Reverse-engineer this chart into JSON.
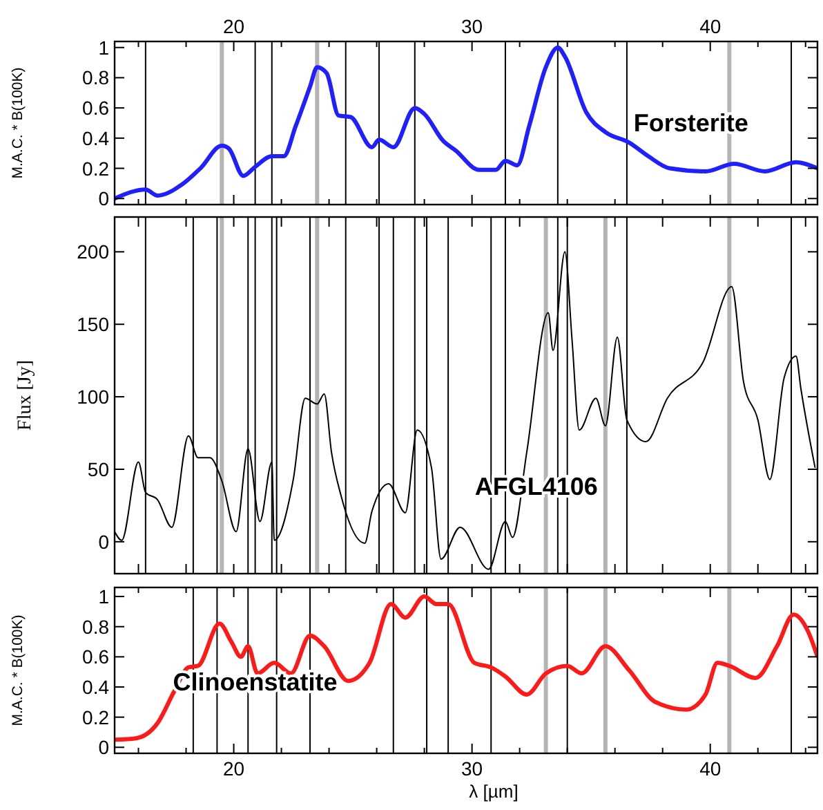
{
  "chart_data": [
    {
      "type": "line",
      "ylabel": "M.A.C. * B(100K)",
      "xlim": [
        15,
        44.5
      ],
      "ylim": [
        -0.04,
        1.04
      ],
      "xticks": [
        {
          "value": 16,
          "label": null
        },
        {
          "value": 18,
          "label": null
        },
        20,
        {
          "value": 22,
          "label": null
        },
        {
          "value": 24,
          "label": null
        },
        {
          "value": 26,
          "label": null
        },
        {
          "value": 28,
          "label": null
        },
        30,
        {
          "value": 32,
          "label": null
        },
        {
          "value": 34,
          "label": null
        },
        {
          "value": 36,
          "label": null
        },
        {
          "value": 38,
          "label": null
        },
        40,
        {
          "value": 42,
          "label": null
        },
        {
          "value": 44,
          "label": null
        }
      ],
      "yticks": [
        0,
        0.2,
        0.4,
        0.6,
        0.8,
        1
      ],
      "legend": false,
      "series": [
        {
          "name": "Forsterite",
          "color": "#1f1fff",
          "x": [
            15,
            16.3,
            16.8,
            17.8,
            18.6,
            19.5,
            19.8,
            20.4,
            20.9,
            21.6,
            22.1,
            22.6,
            23.2,
            23.5,
            23.9,
            24.4,
            24.9,
            25.8,
            26.1,
            26.7,
            27.6,
            28,
            28.8,
            29.3,
            30.3,
            31,
            31.4,
            31.9,
            32.4,
            33.1,
            33.6,
            33.9,
            34.8,
            35.6,
            36.6,
            37.4,
            38.3,
            39.8,
            41,
            42.3,
            43.6,
            44.5
          ],
          "values": [
            0,
            0.06,
            0.02,
            0.09,
            0.2,
            0.35,
            0.33,
            0.15,
            0.21,
            0.28,
            0.28,
            0.48,
            0.74,
            0.87,
            0.83,
            0.55,
            0.54,
            0.34,
            0.39,
            0.34,
            0.6,
            0.56,
            0.38,
            0.32,
            0.19,
            0.19,
            0.25,
            0.22,
            0.48,
            0.87,
            1,
            0.94,
            0.57,
            0.44,
            0.37,
            0.28,
            0.2,
            0.18,
            0.23,
            0.18,
            0.24,
            0.2
          ]
        }
      ],
      "ref_lines": [
        {
          "axis": "x",
          "value": 16.3,
          "color": "#000000"
        },
        {
          "axis": "x",
          "value": 19.5,
          "color": "#b4b4b4"
        },
        {
          "axis": "x",
          "value": 20.9,
          "color": "#000000"
        },
        {
          "axis": "x",
          "value": 21.6,
          "color": "#000000"
        },
        {
          "axis": "x",
          "value": 23.5,
          "color": "#b4b4b4"
        },
        {
          "axis": "x",
          "value": 24.7,
          "color": "#000000"
        },
        {
          "axis": "x",
          "value": 26.1,
          "color": "#000000"
        },
        {
          "axis": "x",
          "value": 27.6,
          "color": "#000000"
        },
        {
          "axis": "x",
          "value": 31.4,
          "color": "#000000"
        },
        {
          "axis": "x",
          "value": 33.6,
          "color": "#000000"
        },
        {
          "axis": "x",
          "value": 36.5,
          "color": "#000000"
        },
        {
          "axis": "x",
          "value": 40.8,
          "color": "#b4b4b4"
        },
        {
          "axis": "x",
          "value": 43.4,
          "color": "#000000"
        }
      ]
    },
    {
      "type": "line",
      "ylabel": "Flux [Jy]",
      "xlim": [
        15,
        44.5
      ],
      "ylim": [
        -22,
        224
      ],
      "tick_labels": "y",
      "xticks": [
        16,
        18,
        20,
        22,
        24,
        26,
        28,
        30,
        32,
        34,
        36,
        38,
        40,
        42,
        44
      ],
      "yticks": [
        0,
        50,
        100,
        150,
        200
      ],
      "legend": false,
      "series": [
        {
          "name": "AFGL4106",
          "color": "#000000",
          "x": [
            15,
            15.3,
            16,
            16.3,
            16.8,
            17.4,
            18.1,
            18.5,
            19,
            19.5,
            20.1,
            20.6,
            21.1,
            21.6,
            21.7,
            22.5,
            23,
            23.5,
            23.8,
            24.1,
            24.5,
            25.5,
            25.8,
            26.5,
            27.2,
            27.7,
            28.3,
            28.7,
            29.5,
            30.7,
            31.4,
            31.7,
            32.3,
            33.2,
            33.4,
            33.9,
            34.2,
            34.5,
            35.2,
            35.6,
            36.1,
            36.5,
            37.3,
            38.2,
            39.7,
            40.9,
            41.4,
            42,
            42.5,
            43.1,
            43.6,
            43.8,
            44.4
          ],
          "values": [
            7,
            1,
            55,
            34,
            29,
            10,
            73,
            58,
            58,
            42,
            7,
            64,
            14,
            55,
            1,
            43,
            99,
            95,
            102,
            62,
            32,
            -1,
            21,
            40,
            20,
            77,
            51,
            -12,
            10,
            -19,
            14,
            3,
            62,
            158,
            132,
            200,
            139,
            77,
            99,
            80,
            141,
            84,
            69,
            99,
            124,
            176,
            110,
            84,
            43,
            113,
            128,
            106,
            51
          ]
        }
      ],
      "ref_lines": [
        {
          "axis": "x",
          "value": 16.3,
          "color": "#000000"
        },
        {
          "axis": "x",
          "value": 18.3,
          "color": "#000000"
        },
        {
          "axis": "x",
          "value": 19.3,
          "color": "#000000"
        },
        {
          "axis": "x",
          "value": 19.5,
          "color": "#b4b4b4"
        },
        {
          "axis": "x",
          "value": 20.6,
          "color": "#000000"
        },
        {
          "axis": "x",
          "value": 20.9,
          "color": "#000000"
        },
        {
          "axis": "x",
          "value": 21.6,
          "color": "#000000"
        },
        {
          "axis": "x",
          "value": 21.8,
          "color": "#000000"
        },
        {
          "axis": "x",
          "value": 23.2,
          "color": "#000000"
        },
        {
          "axis": "x",
          "value": 23.5,
          "color": "#b4b4b4"
        },
        {
          "axis": "x",
          "value": 24.7,
          "color": "#000000"
        },
        {
          "axis": "x",
          "value": 26.1,
          "color": "#000000"
        },
        {
          "axis": "x",
          "value": 26.7,
          "color": "#000000"
        },
        {
          "axis": "x",
          "value": 27.6,
          "color": "#000000"
        },
        {
          "axis": "x",
          "value": 28.1,
          "color": "#000000"
        },
        {
          "axis": "x",
          "value": 29,
          "color": "#000000"
        },
        {
          "axis": "x",
          "value": 30.8,
          "color": "#000000"
        },
        {
          "axis": "x",
          "value": 31.4,
          "color": "#000000"
        },
        {
          "axis": "x",
          "value": 33.1,
          "color": "#b4b4b4"
        },
        {
          "axis": "x",
          "value": 33.6,
          "color": "#000000"
        },
        {
          "axis": "x",
          "value": 34,
          "color": "#000000"
        },
        {
          "axis": "x",
          "value": 35.6,
          "color": "#b4b4b4"
        },
        {
          "axis": "x",
          "value": 36.5,
          "color": "#000000"
        },
        {
          "axis": "x",
          "value": 40.8,
          "color": "#b4b4b4"
        },
        {
          "axis": "x",
          "value": 43.4,
          "color": "#000000"
        }
      ]
    },
    {
      "type": "line",
      "ylabel": "M.A.C. * B(100K)",
      "xlabel": "λ [µm]",
      "xlim": [
        15,
        44.5
      ],
      "ylim": [
        -0.04,
        1.06
      ],
      "xticks": [
        {
          "value": 16,
          "label": null
        },
        {
          "value": 18,
          "label": null
        },
        20,
        {
          "value": 22,
          "label": null
        },
        {
          "value": 24,
          "label": null
        },
        {
          "value": 26,
          "label": null
        },
        {
          "value": 28,
          "label": null
        },
        30,
        {
          "value": 32,
          "label": null
        },
        {
          "value": 34,
          "label": null
        },
        {
          "value": 36,
          "label": null
        },
        {
          "value": 38,
          "label": null
        },
        40,
        {
          "value": 42,
          "label": null
        },
        {
          "value": 44,
          "label": null
        }
      ],
      "yticks": [
        0,
        0.2,
        0.4,
        0.6,
        0.8,
        1
      ],
      "legend": false,
      "series": [
        {
          "name": "Clinoenstatite",
          "color": "#ff1a1a",
          "x": [
            15,
            15.9,
            16.8,
            17.5,
            18.1,
            18.5,
            19.4,
            19.9,
            20.3,
            20.6,
            21,
            21.7,
            22.4,
            23.2,
            23.8,
            24.8,
            25.7,
            26.6,
            27.2,
            28,
            28.5,
            29,
            30.1,
            30.8,
            31.4,
            32.3,
            33.1,
            34,
            34.6,
            35.6,
            36.6,
            37.7,
            39,
            39.8,
            40.3,
            40.8,
            41.9,
            42.8,
            43.5,
            44.1,
            44.5
          ],
          "values": [
            0.05,
            0.06,
            0.16,
            0.37,
            0.53,
            0.54,
            0.82,
            0.7,
            0.6,
            0.67,
            0.49,
            0.56,
            0.49,
            0.74,
            0.67,
            0.44,
            0.56,
            0.95,
            0.86,
            1,
            0.95,
            0.95,
            0.56,
            0.53,
            0.47,
            0.35,
            0.49,
            0.54,
            0.49,
            0.67,
            0.51,
            0.3,
            0.25,
            0.35,
            0.56,
            0.54,
            0.46,
            0.67,
            0.88,
            0.77,
            0.6
          ]
        }
      ],
      "ref_lines": [
        {
          "axis": "x",
          "value": 18.3,
          "color": "#000000"
        },
        {
          "axis": "x",
          "value": 19.3,
          "color": "#000000"
        },
        {
          "axis": "x",
          "value": 20.6,
          "color": "#000000"
        },
        {
          "axis": "x",
          "value": 21.8,
          "color": "#000000"
        },
        {
          "axis": "x",
          "value": 23.2,
          "color": "#000000"
        },
        {
          "axis": "x",
          "value": 26.7,
          "color": "#000000"
        },
        {
          "axis": "x",
          "value": 28.1,
          "color": "#000000"
        },
        {
          "axis": "x",
          "value": 29,
          "color": "#000000"
        },
        {
          "axis": "x",
          "value": 30.8,
          "color": "#000000"
        },
        {
          "axis": "x",
          "value": 33.1,
          "color": "#b4b4b4"
        },
        {
          "axis": "x",
          "value": 34,
          "color": "#000000"
        },
        {
          "axis": "x",
          "value": 35.6,
          "color": "#b4b4b4"
        },
        {
          "axis": "x",
          "value": 40.8,
          "color": "#b4b4b4"
        },
        {
          "axis": "x",
          "value": 43.4,
          "color": "#000000"
        }
      ]
    }
  ]
}
